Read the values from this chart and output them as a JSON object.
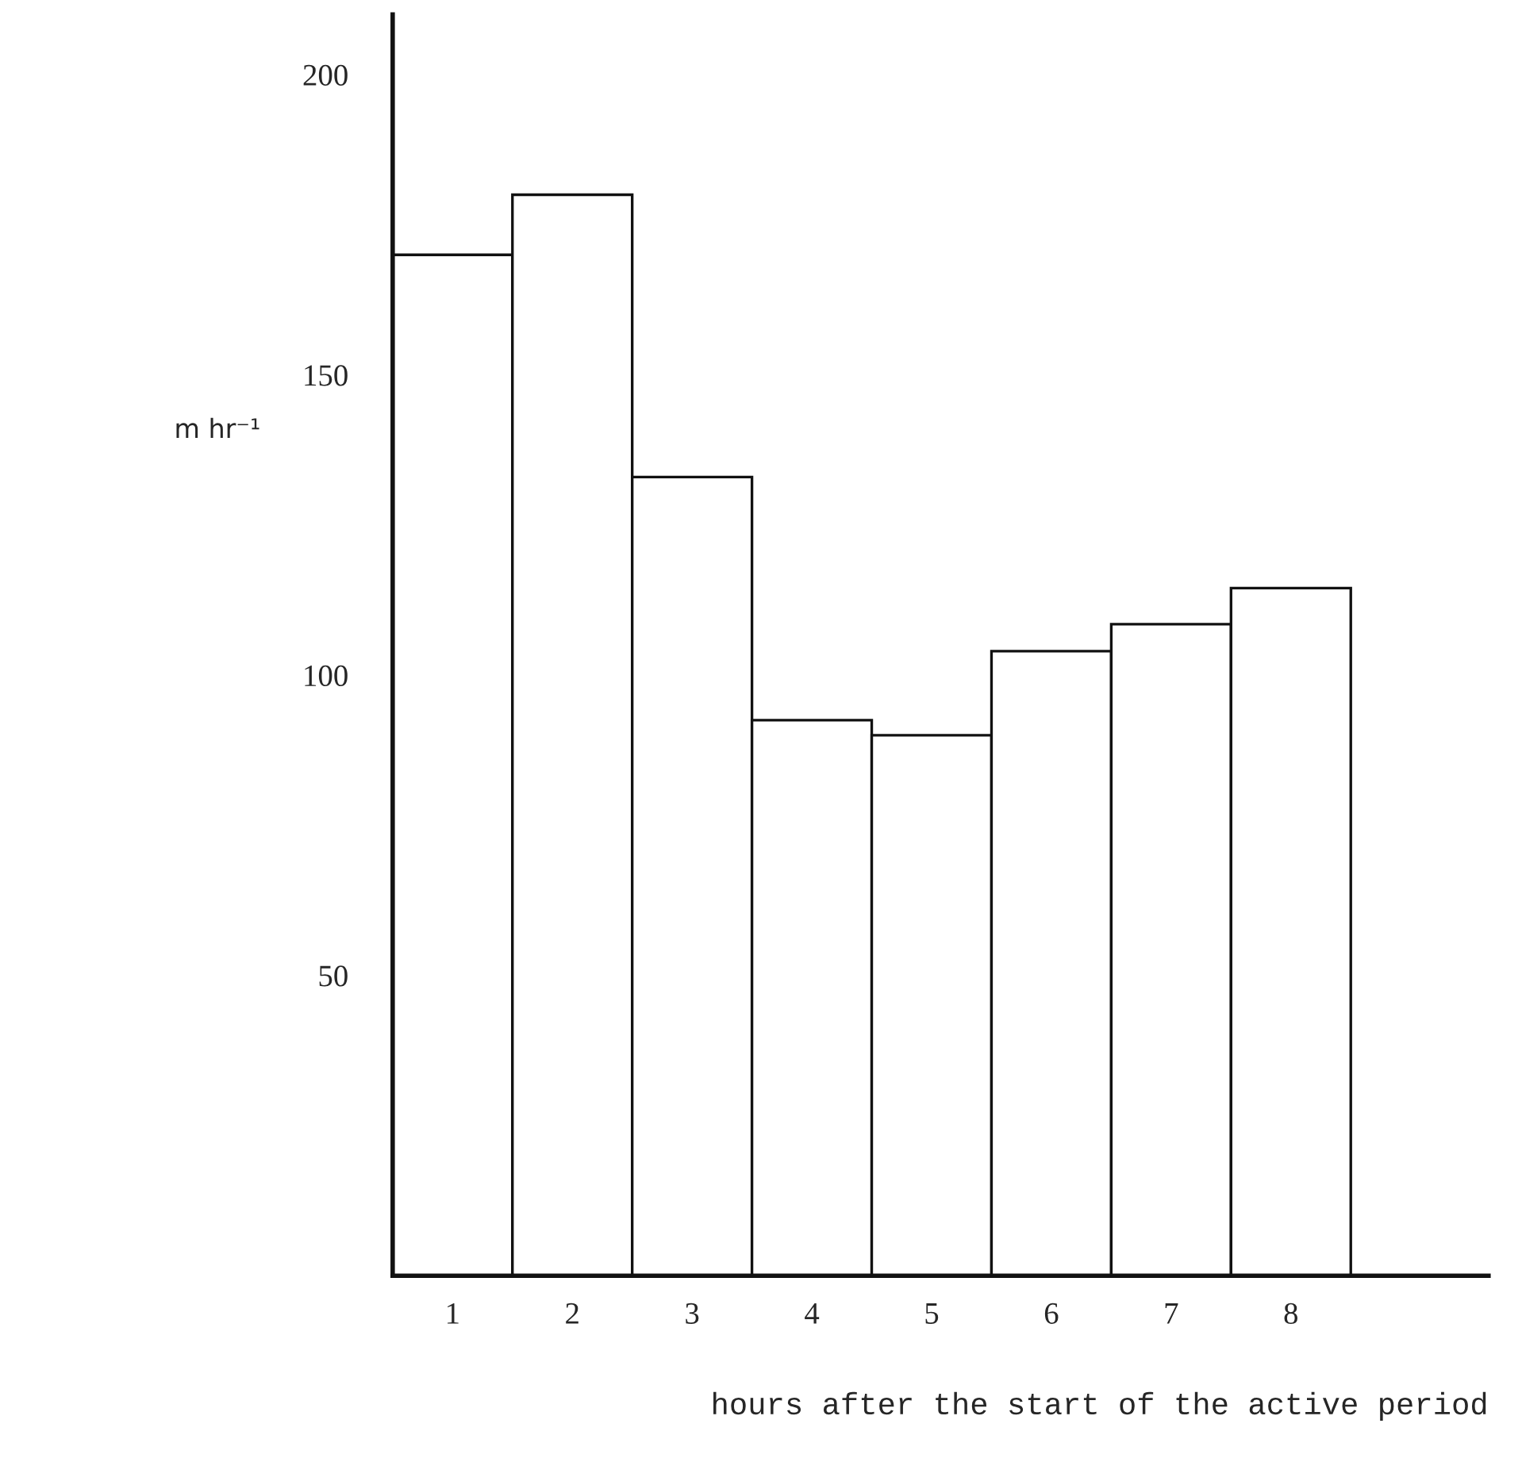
{
  "chart_data": {
    "type": "bar",
    "xlabel": "hours after the start of the active period",
    "ylabel": "m hr⁻¹",
    "categories": [
      "1",
      "2",
      "3",
      "4",
      "5",
      "6",
      "7",
      "8"
    ],
    "values": [
      170,
      180,
      133,
      92.5,
      90,
      104,
      108.5,
      114.5
    ],
    "color": "#ffffff",
    "ylim": [
      0,
      210
    ],
    "yticks": [
      50,
      100,
      150,
      200
    ],
    "grid": false,
    "legend": false
  }
}
